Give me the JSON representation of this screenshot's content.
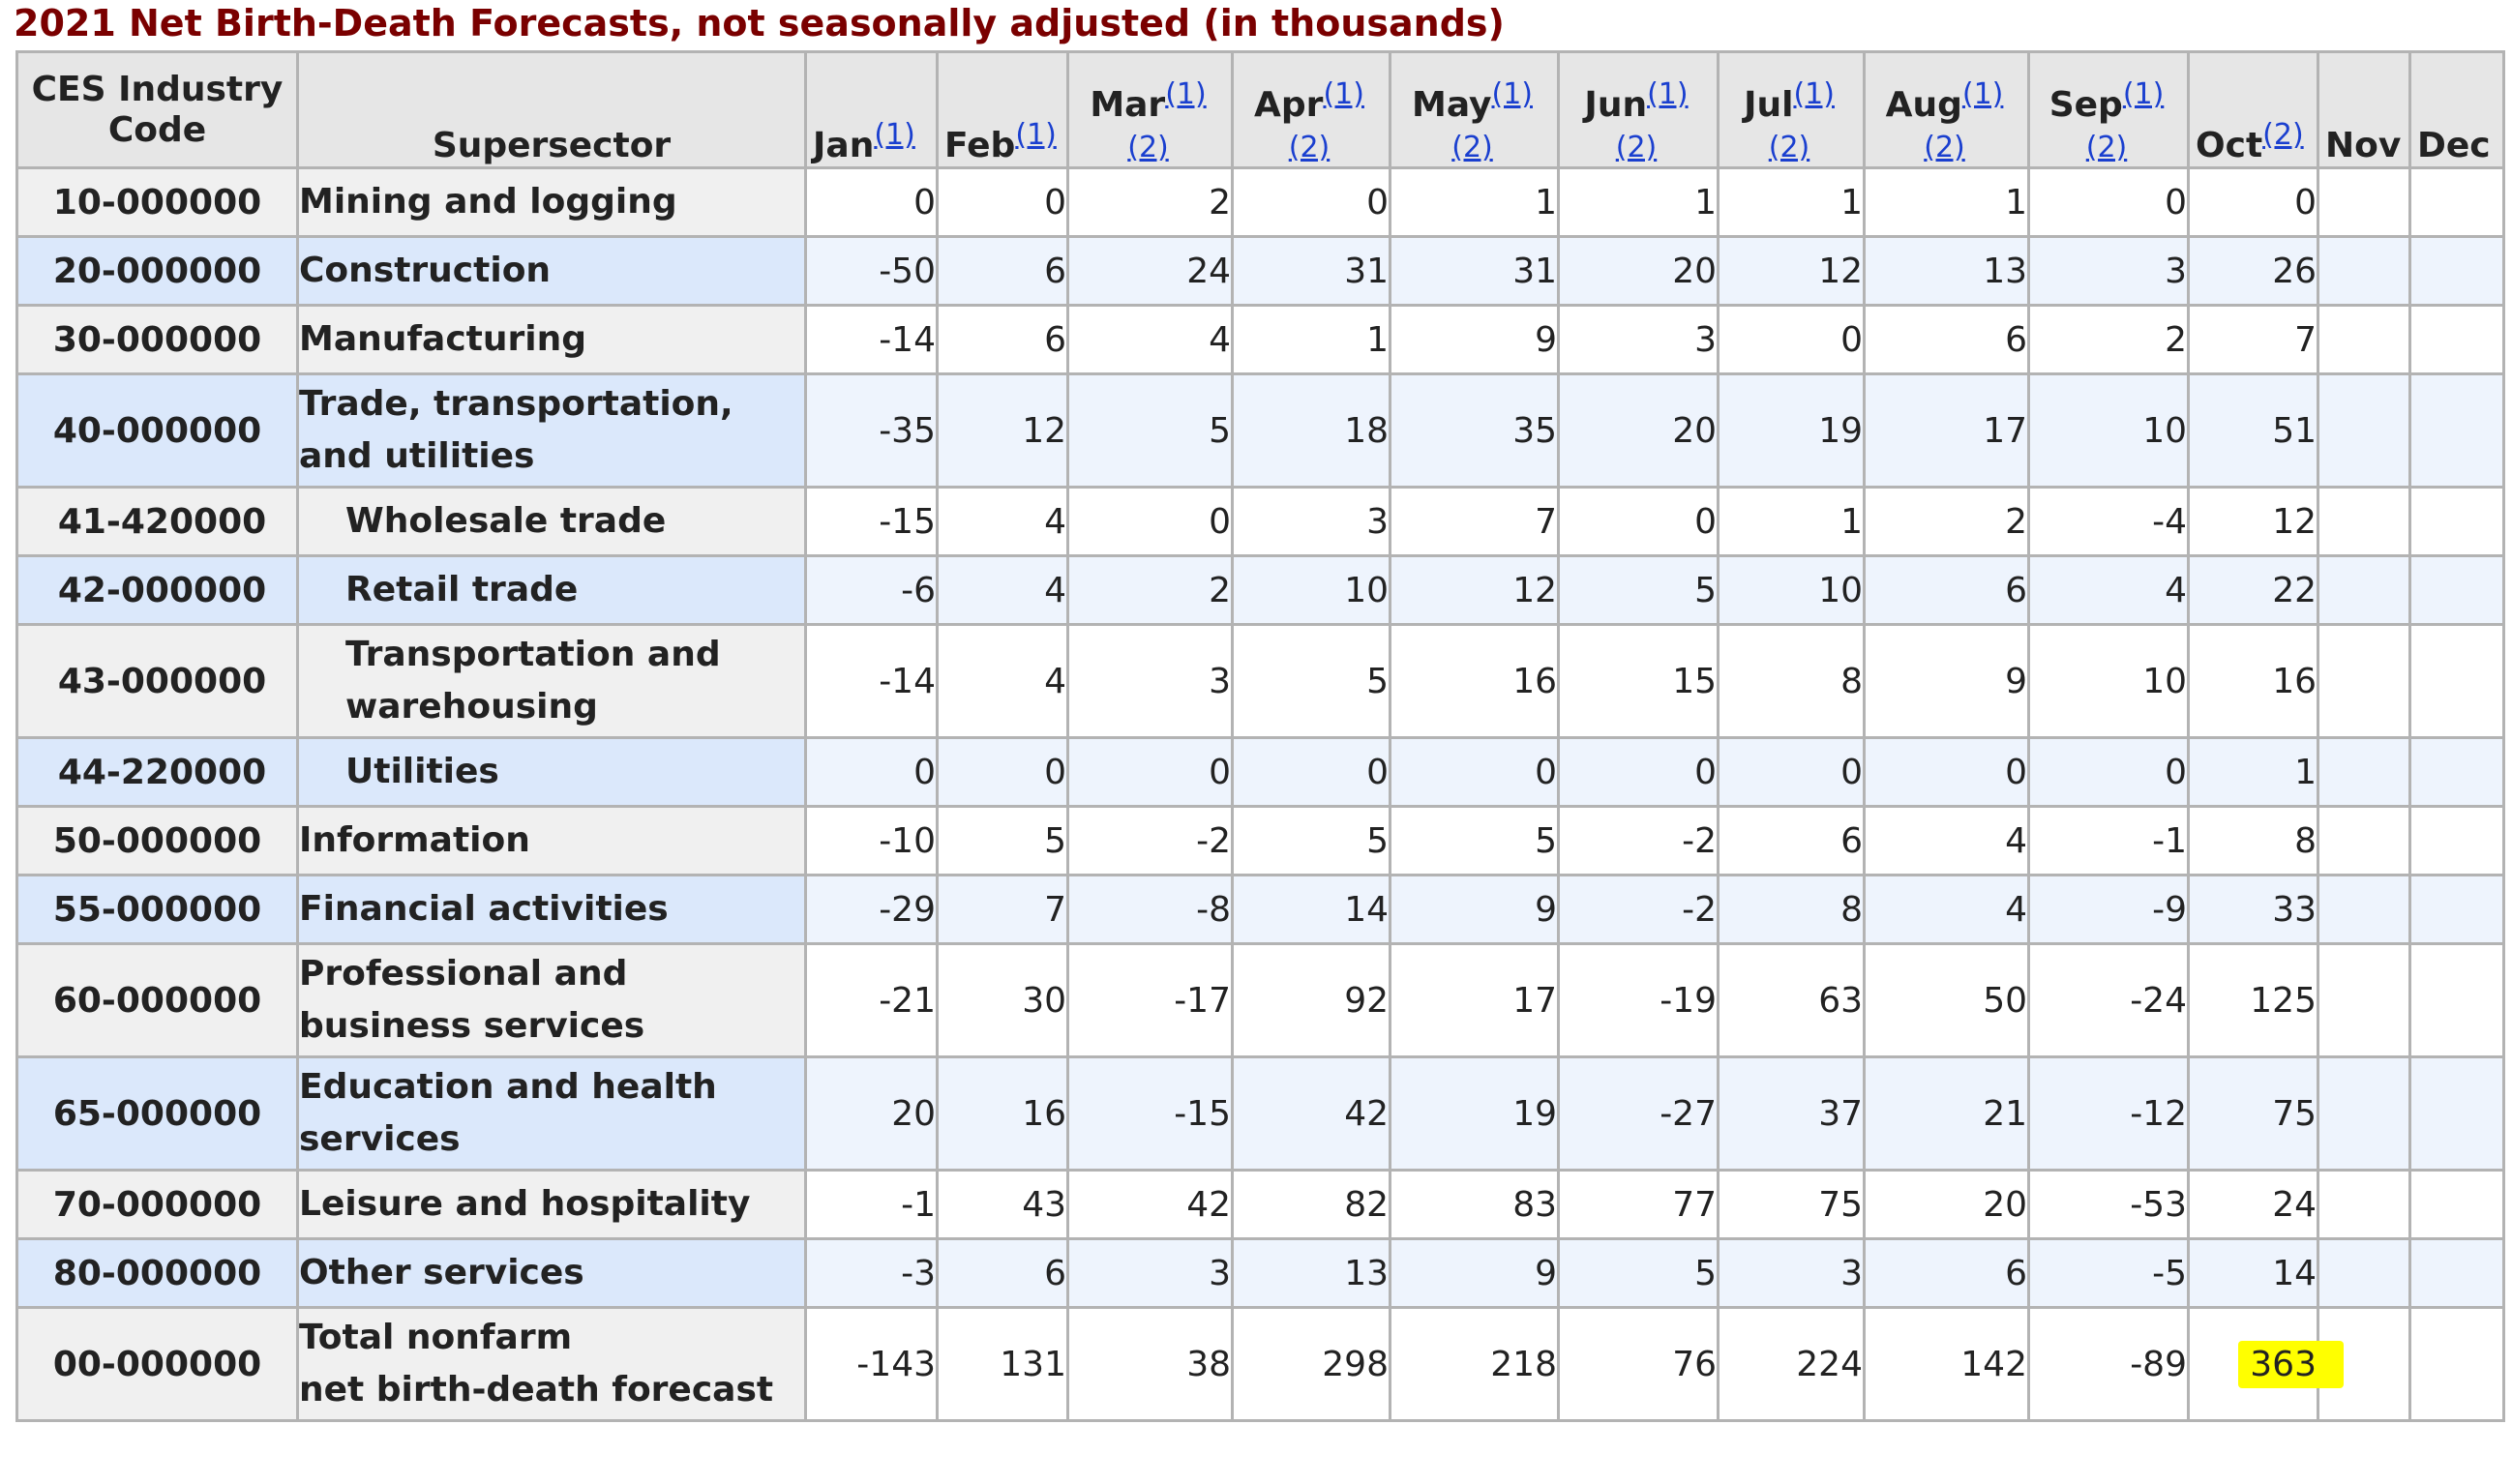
{
  "title": "2021 Net Birth-Death Forecasts, not seasonally adjusted (in thousands)",
  "headers": {
    "code": "CES Industry Code",
    "code_line1": "CES Industry",
    "code_line2": "Code",
    "sector": "Supersector",
    "months": [
      {
        "label": "Jan",
        "notes": [
          "(1)"
        ]
      },
      {
        "label": "Feb",
        "notes": [
          "(1)"
        ]
      },
      {
        "label": "Mar",
        "notes": [
          "(1)",
          "(2)"
        ]
      },
      {
        "label": "Apr",
        "notes": [
          "(1)",
          "(2)"
        ]
      },
      {
        "label": "May",
        "notes": [
          "(1)",
          "(2)"
        ]
      },
      {
        "label": "Jun",
        "notes": [
          "(1)",
          "(2)"
        ]
      },
      {
        "label": "Jul",
        "notes": [
          "(1)",
          "(2)"
        ]
      },
      {
        "label": "Aug",
        "notes": [
          "(1)",
          "(2)"
        ]
      },
      {
        "label": "Sep",
        "notes": [
          "(1)",
          "(2)"
        ]
      },
      {
        "label": "Oct",
        "notes": [
          "(2)"
        ]
      },
      {
        "label": "Nov",
        "notes": []
      },
      {
        "label": "Dec",
        "notes": []
      }
    ]
  },
  "rows": [
    {
      "code": "10-000000",
      "sector": [
        "Mining and logging"
      ],
      "values": [
        "0",
        "0",
        "2",
        "0",
        "1",
        "1",
        "1",
        "1",
        "0",
        "0",
        "",
        ""
      ]
    },
    {
      "code": "20-000000",
      "sector": [
        "Construction"
      ],
      "values": [
        "-50",
        "6",
        "24",
        "31",
        "31",
        "20",
        "12",
        "13",
        "3",
        "26",
        "",
        ""
      ]
    },
    {
      "code": "30-000000",
      "sector": [
        "Manufacturing"
      ],
      "values": [
        "-14",
        "6",
        "4",
        "1",
        "9",
        "3",
        "0",
        "6",
        "2",
        "7",
        "",
        ""
      ]
    },
    {
      "code": "40-000000",
      "sector": [
        "Trade, transportation,",
        "and utilities"
      ],
      "values": [
        "-35",
        "12",
        "5",
        "18",
        "35",
        "20",
        "19",
        "17",
        "10",
        "51",
        "",
        ""
      ]
    },
    {
      "code": "41-420000",
      "sector": [
        "Wholesale trade"
      ],
      "values": [
        "-15",
        "4",
        "0",
        "3",
        "7",
        "0",
        "1",
        "2",
        "-4",
        "12",
        "",
        ""
      ]
    },
    {
      "code": "42-000000",
      "sector": [
        "Retail trade"
      ],
      "values": [
        "-6",
        "4",
        "2",
        "10",
        "12",
        "5",
        "10",
        "6",
        "4",
        "22",
        "",
        ""
      ]
    },
    {
      "code": "43-000000",
      "sector": [
        "Transportation and",
        "warehousing"
      ],
      "values": [
        "-14",
        "4",
        "3",
        "5",
        "16",
        "15",
        "8",
        "9",
        "10",
        "16",
        "",
        ""
      ]
    },
    {
      "code": "44-220000",
      "sector": [
        "Utilities"
      ],
      "values": [
        "0",
        "0",
        "0",
        "0",
        "0",
        "0",
        "0",
        "0",
        "0",
        "1",
        "",
        ""
      ]
    },
    {
      "code": "50-000000",
      "sector": [
        "Information"
      ],
      "values": [
        "-10",
        "5",
        "-2",
        "5",
        "5",
        "-2",
        "6",
        "4",
        "-1",
        "8",
        "",
        ""
      ]
    },
    {
      "code": "55-000000",
      "sector": [
        "Financial activities"
      ],
      "values": [
        "-29",
        "7",
        "-8",
        "14",
        "9",
        "-2",
        "8",
        "4",
        "-9",
        "33",
        "",
        ""
      ]
    },
    {
      "code": "60-000000",
      "sector": [
        "Professional and",
        "business services"
      ],
      "values": [
        "-21",
        "30",
        "-17",
        "92",
        "17",
        "-19",
        "63",
        "50",
        "-24",
        "125",
        "",
        ""
      ]
    },
    {
      "code": "65-000000",
      "sector": [
        "Education and health",
        "services"
      ],
      "values": [
        "20",
        "16",
        "-15",
        "42",
        "19",
        "-27",
        "37",
        "21",
        "-12",
        "75",
        "",
        ""
      ]
    },
    {
      "code": "70-000000",
      "sector": [
        "Leisure and hospitality"
      ],
      "values": [
        "-1",
        "43",
        "42",
        "82",
        "83",
        "77",
        "75",
        "20",
        "-53",
        "24",
        "",
        ""
      ]
    },
    {
      "code": "80-000000",
      "sector": [
        "Other services"
      ],
      "values": [
        "-3",
        "6",
        "3",
        "13",
        "9",
        "5",
        "3",
        "6",
        "-5",
        "14",
        "",
        ""
      ]
    },
    {
      "code": "00-000000",
      "sector": [
        "Total nonfarm",
        "net birth-death forecast"
      ],
      "values": [
        "-143",
        "131",
        "38",
        "298",
        "218",
        "76",
        "224",
        "142",
        "-89",
        "363",
        "",
        ""
      ]
    }
  ],
  "highlight": {
    "row": 14,
    "col": 9,
    "color": "#ffff00"
  },
  "colors": {
    "title": "#7a0000",
    "link": "#1a3fcf",
    "row_alt": "#dbe8fb",
    "row_base": "#f0f0f0"
  }
}
